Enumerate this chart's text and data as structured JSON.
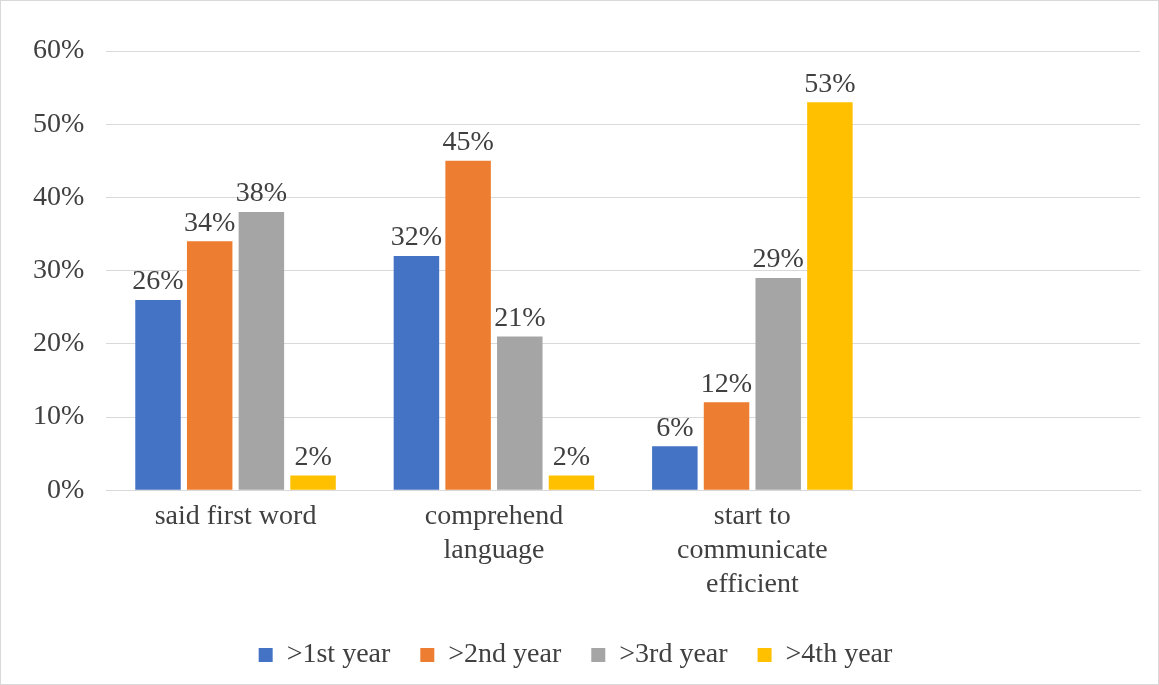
{
  "chart_data": {
    "type": "bar",
    "categories": [
      "said first word",
      "comprehend language",
      "start to communicate efficient",
      null
    ],
    "series": [
      {
        "name": ">1st year",
        "color": "#4472c4",
        "values": [
          26,
          32,
          6,
          null
        ],
        "value_labels": [
          "26%",
          "32%",
          "6%",
          null
        ]
      },
      {
        "name": ">2nd year",
        "color": "#ed7d31",
        "values": [
          34,
          45,
          12,
          null
        ],
        "value_labels": [
          "34%",
          "45%",
          "12%",
          null
        ]
      },
      {
        "name": ">3rd year",
        "color": "#a5a5a5",
        "values": [
          38,
          21,
          29,
          null
        ],
        "value_labels": [
          "38%",
          "21%",
          "29%",
          null
        ]
      },
      {
        "name": ">4th year",
        "color": "#ffc000",
        "values": [
          2,
          2,
          53,
          null
        ],
        "value_labels": [
          "2%",
          "2%",
          "53%",
          null
        ]
      }
    ],
    "ylim": [
      0,
      60
    ],
    "yticks": [
      {
        "value": 0,
        "label": "0%"
      },
      {
        "value": 10,
        "label": "10%"
      },
      {
        "value": 20,
        "label": "20%"
      },
      {
        "value": 30,
        "label": "30%"
      },
      {
        "value": 40,
        "label": "40%"
      },
      {
        "value": 50,
        "label": "50%"
      },
      {
        "value": 60,
        "label": "60%"
      }
    ],
    "grid": "y",
    "legend": "bottom"
  }
}
